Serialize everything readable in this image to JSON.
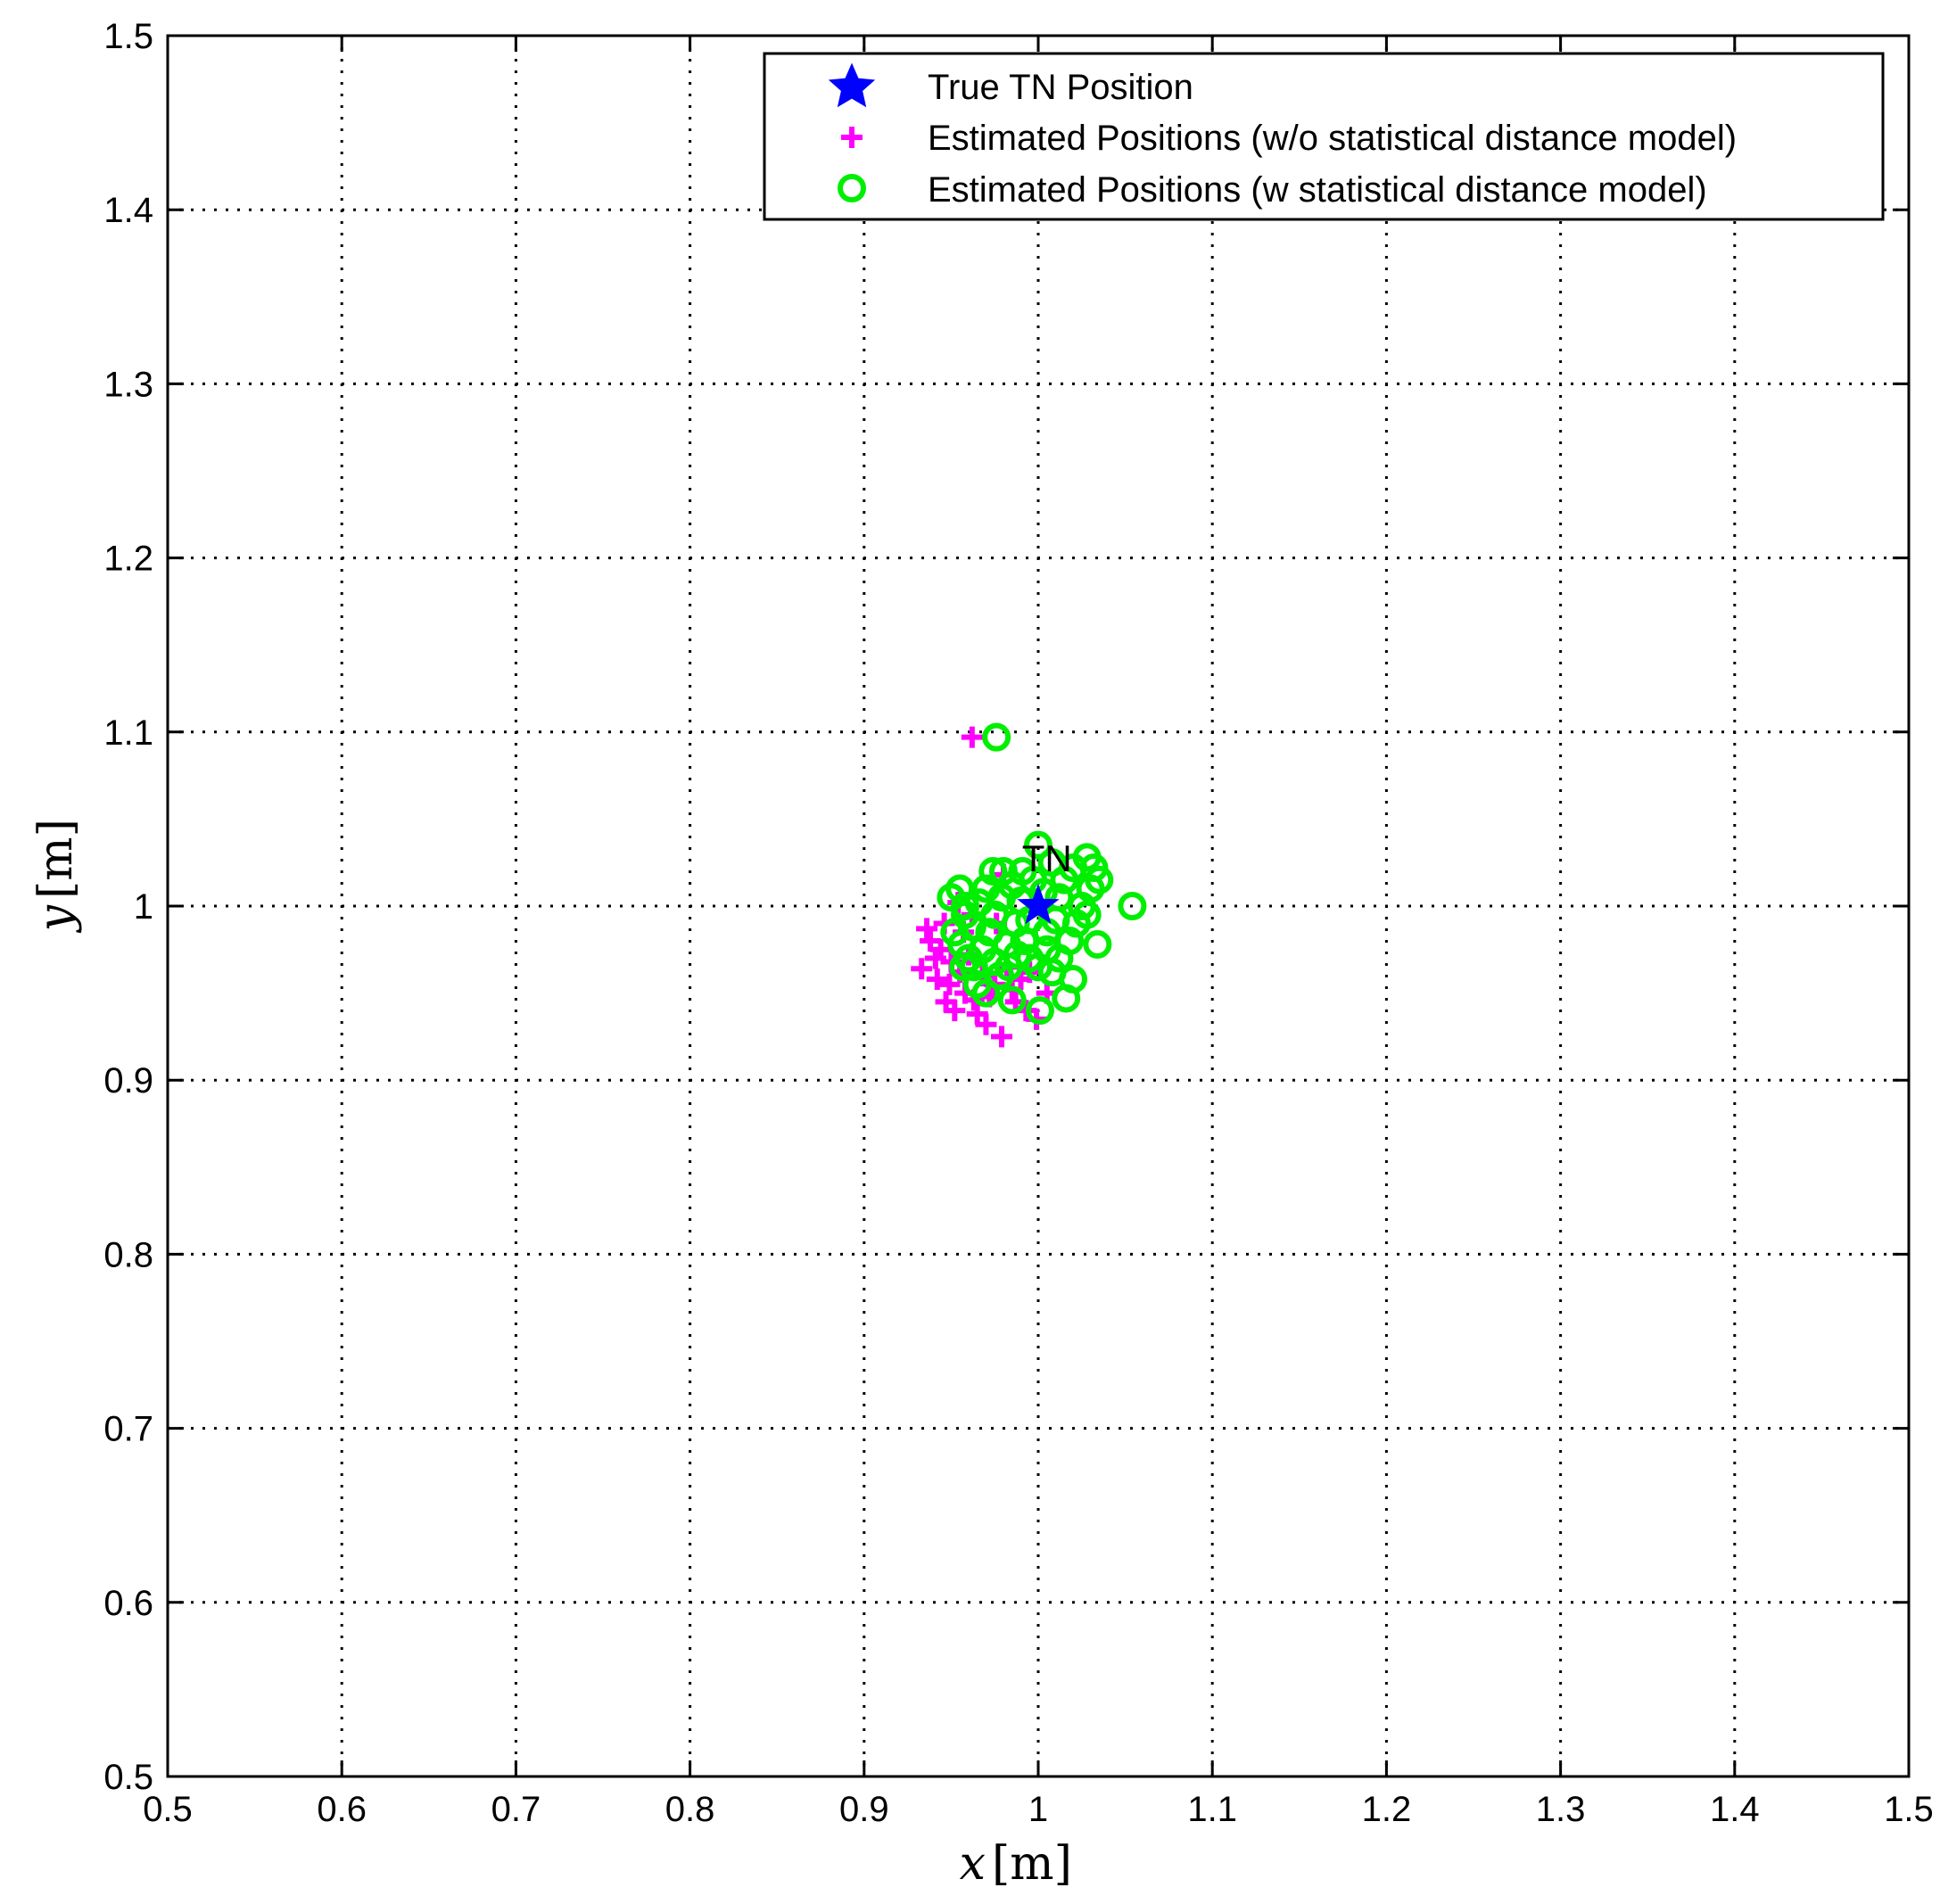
{
  "chart_data": {
    "type": "scatter",
    "title": "",
    "xlabel": {
      "var": "x",
      "unit": "[m]"
    },
    "ylabel": {
      "var": "y",
      "unit": "[m]"
    },
    "xlim": [
      0.5,
      1.5
    ],
    "ylim": [
      0.5,
      1.5
    ],
    "xticks": [
      "0.5",
      "0.6",
      "0.7",
      "0.8",
      "0.9",
      "1",
      "1.1",
      "1.2",
      "1.3",
      "1.4",
      "1.5"
    ],
    "yticks": [
      "0.5",
      "0.6",
      "0.7",
      "0.8",
      "0.9",
      "1",
      "1.1",
      "1.2",
      "1.3",
      "1.4",
      "1.5"
    ],
    "grid": true,
    "grid_style": "dotted",
    "legend_position": "top-right",
    "annotations": [
      {
        "text": "TN",
        "x": 1.005,
        "y": 1.025
      }
    ],
    "series": [
      {
        "name": "True TN Position",
        "marker": "star",
        "color": "#0000ff",
        "points": [
          [
            1.0,
            1.0
          ]
        ]
      },
      {
        "name": "Estimated Positions (w/o statistical distance model)",
        "marker": "plus",
        "color": "#ff00ff",
        "points": [
          [
            0.962,
            1.097
          ],
          [
            0.936,
            0.987
          ],
          [
            0.933,
            0.964
          ],
          [
            0.942,
            0.958
          ],
          [
            0.947,
            0.945
          ],
          [
            0.952,
            0.94
          ],
          [
            0.958,
            0.95
          ],
          [
            0.963,
            0.946
          ],
          [
            0.97,
            0.932
          ],
          [
            0.979,
            0.925
          ],
          [
            0.985,
            0.952
          ],
          [
            0.993,
            0.94
          ],
          [
            0.999,
            0.935
          ],
          [
            0.944,
            0.975
          ],
          [
            0.95,
            0.968
          ],
          [
            0.955,
            0.962
          ],
          [
            0.938,
            0.98
          ],
          [
            0.946,
            0.99
          ],
          [
            0.96,
            0.972
          ],
          [
            0.968,
            0.96
          ],
          [
            0.975,
            0.955
          ],
          [
            0.982,
            0.965
          ],
          [
            0.99,
            0.958
          ],
          [
            0.957,
            0.985
          ],
          [
            0.972,
            0.948
          ],
          [
            0.965,
            0.938
          ],
          [
            0.941,
            0.97
          ],
          [
            0.949,
            0.955
          ],
          [
            0.987,
            0.945
          ],
          [
            0.995,
            0.962
          ],
          [
            1.005,
            0.95
          ],
          [
            0.98,
            1.018
          ],
          [
            0.976,
            0.99
          ],
          [
            0.962,
            0.995
          ],
          [
            0.954,
            1.002
          ]
        ]
      },
      {
        "name": "Estimated Positions (w statistical distance model)",
        "marker": "circle",
        "color": "#00ee00",
        "points": [
          [
            0.976,
            1.097
          ],
          [
            1.054,
            1.0
          ],
          [
            1.034,
            0.978
          ],
          [
            1.0,
            1.035
          ],
          [
            1.001,
            0.94
          ],
          [
            1.016,
            0.947
          ],
          [
            0.965,
            0.955
          ],
          [
            0.97,
            0.95
          ],
          [
            0.985,
            0.946
          ],
          [
            1.02,
            0.958
          ],
          [
            0.95,
            1.005
          ],
          [
            0.955,
            1.01
          ],
          [
            0.958,
            0.995
          ],
          [
            0.952,
            0.985
          ],
          [
            0.956,
            0.978
          ],
          [
            0.96,
            0.97
          ],
          [
            0.963,
            0.965
          ],
          [
            0.968,
            0.975
          ],
          [
            0.972,
            0.985
          ],
          [
            0.975,
            0.995
          ],
          [
            0.97,
            1.01
          ],
          [
            0.974,
            1.02
          ],
          [
            0.98,
            1.02
          ],
          [
            0.985,
            1.012
          ],
          [
            0.99,
            1.003
          ],
          [
            0.995,
            0.992
          ],
          [
            0.992,
            0.98
          ],
          [
            0.988,
            0.972
          ],
          [
            0.983,
            0.965
          ],
          [
            0.978,
            0.96
          ],
          [
            1.005,
            0.985
          ],
          [
            1.01,
            0.992
          ],
          [
            1.012,
            1.005
          ],
          [
            1.015,
            1.015
          ],
          [
            1.02,
            1.022
          ],
          [
            1.028,
            1.028
          ],
          [
            1.032,
            1.022
          ],
          [
            1.03,
            1.01
          ],
          [
            1.025,
            1.0
          ],
          [
            1.022,
            0.99
          ],
          [
            1.018,
            0.98
          ],
          [
            1.012,
            0.97
          ],
          [
            1.008,
            0.962
          ],
          [
            1.0,
            0.965
          ],
          [
            0.995,
            0.97
          ],
          [
            0.962,
            0.988
          ],
          [
            0.966,
            1.002
          ],
          [
            0.979,
            1.005
          ],
          [
            0.987,
            0.99
          ],
          [
            1.003,
            1.008
          ],
          [
            1.035,
            1.015
          ],
          [
            1.028,
            0.995
          ],
          [
            0.997,
            1.015
          ],
          [
            0.991,
            1.02
          ],
          [
            1.008,
            1.025
          ],
          [
            0.957,
            0.965
          ],
          [
            0.975,
            0.968
          ],
          [
            1.005,
            0.975
          ],
          [
            0.982,
            0.978
          ],
          [
            0.958,
            1.0
          ]
        ]
      }
    ]
  }
}
